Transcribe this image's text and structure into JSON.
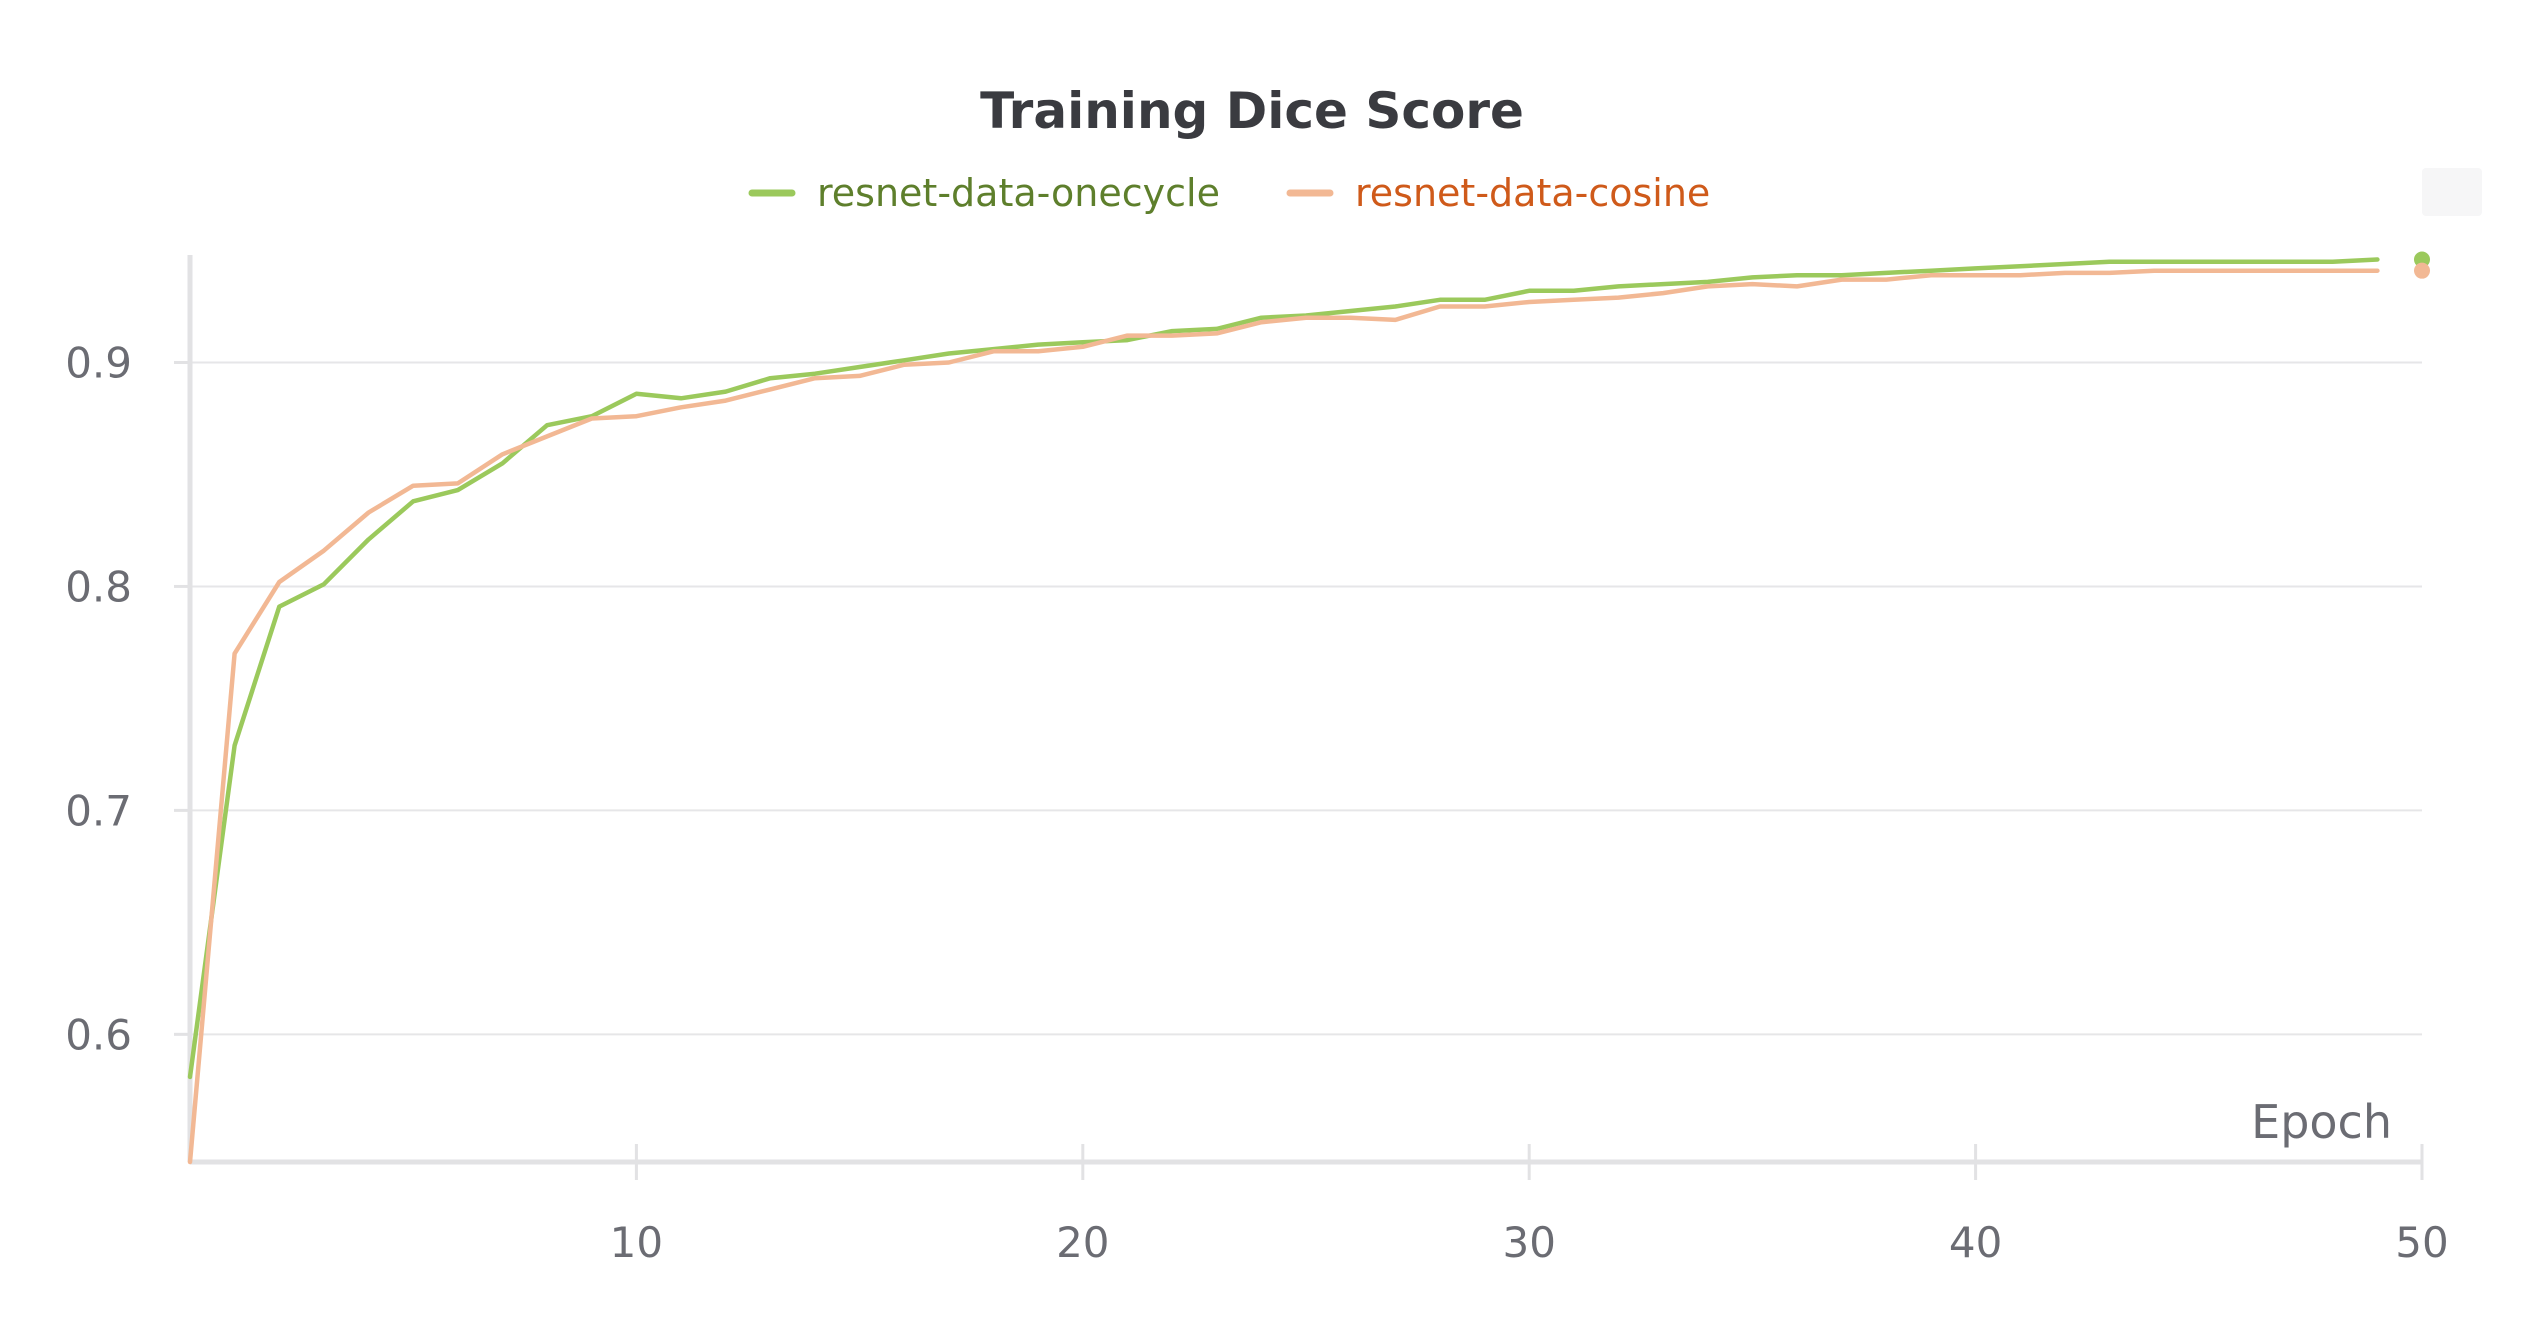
{
  "chart_data": {
    "type": "line",
    "title": "Training Dice Score",
    "xlabel": "Epoch",
    "ylabel": "",
    "xlim": [
      0,
      50
    ],
    "ylim": [
      0.543,
      0.948
    ],
    "x_ticks": [
      10,
      20,
      30,
      40,
      50
    ],
    "y_ticks": [
      0.6,
      0.7,
      0.8,
      0.9
    ],
    "x_tick_labels": [
      "10",
      "20",
      "30",
      "40",
      "50"
    ],
    "y_tick_labels": [
      "0.6",
      "0.7",
      "0.8",
      "0.9"
    ],
    "grid": true,
    "legend_position": "top",
    "series": [
      {
        "name": "resnet-data-onecycle",
        "color": "#9bc95c",
        "label_color": "#5e7f2c",
        "x": [
          0,
          1,
          2,
          3,
          4,
          5,
          6,
          7,
          8,
          9,
          10,
          11,
          12,
          13,
          14,
          15,
          16,
          17,
          18,
          19,
          20,
          21,
          22,
          23,
          24,
          25,
          26,
          27,
          28,
          29,
          30,
          31,
          32,
          33,
          34,
          35,
          36,
          37,
          38,
          39,
          40,
          41,
          42,
          43,
          44,
          45,
          46,
          47,
          48,
          49
        ],
        "values": [
          0.581,
          0.729,
          0.791,
          0.801,
          0.821,
          0.838,
          0.843,
          0.855,
          0.872,
          0.876,
          0.886,
          0.884,
          0.887,
          0.893,
          0.895,
          0.898,
          0.901,
          0.904,
          0.906,
          0.908,
          0.909,
          0.91,
          0.914,
          0.915,
          0.92,
          0.921,
          0.923,
          0.925,
          0.928,
          0.928,
          0.932,
          0.932,
          0.934,
          0.935,
          0.936,
          0.938,
          0.939,
          0.939,
          0.94,
          0.941,
          0.942,
          0.943,
          0.944,
          0.945,
          0.945,
          0.945,
          0.945,
          0.945,
          0.945,
          0.946
        ]
      },
      {
        "name": "resnet-data-cosine",
        "color": "#f2b894",
        "label_color": "#cf5a1a",
        "x": [
          0,
          1,
          2,
          3,
          4,
          5,
          6,
          7,
          8,
          9,
          10,
          11,
          12,
          13,
          14,
          15,
          16,
          17,
          18,
          19,
          20,
          21,
          22,
          23,
          24,
          25,
          26,
          27,
          28,
          29,
          30,
          31,
          32,
          33,
          34,
          35,
          36,
          37,
          38,
          39,
          40,
          41,
          42,
          43,
          44,
          45,
          46,
          47,
          48,
          49
        ],
        "values": [
          0.543,
          0.77,
          0.802,
          0.816,
          0.833,
          0.845,
          0.846,
          0.859,
          0.867,
          0.875,
          0.876,
          0.88,
          0.883,
          0.888,
          0.893,
          0.894,
          0.899,
          0.9,
          0.905,
          0.905,
          0.907,
          0.912,
          0.912,
          0.913,
          0.918,
          0.92,
          0.92,
          0.919,
          0.925,
          0.925,
          0.927,
          0.928,
          0.929,
          0.931,
          0.934,
          0.935,
          0.934,
          0.937,
          0.937,
          0.939,
          0.939,
          0.939,
          0.94,
          0.94,
          0.941,
          0.941,
          0.941,
          0.941,
          0.941,
          0.941
        ]
      }
    ]
  }
}
